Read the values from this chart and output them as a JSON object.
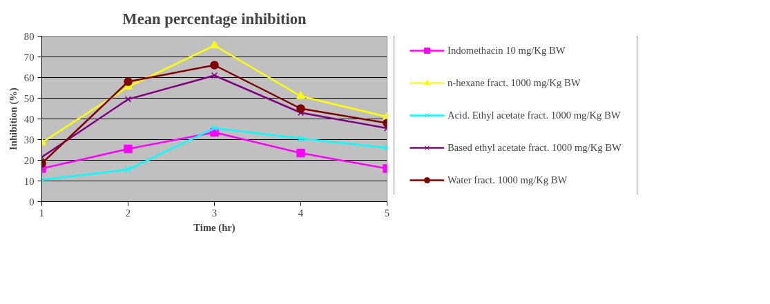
{
  "chart_data": {
    "type": "line",
    "title": "Mean percentage inhibition",
    "xlabel": "Time (hr)",
    "ylabel": "Inhibition (%)",
    "x": [
      1,
      2,
      3,
      4,
      5
    ],
    "xlim": [
      1,
      5
    ],
    "xticks": [
      1,
      2,
      3,
      4,
      5
    ],
    "ylim": [
      0,
      80
    ],
    "yticks": [
      0,
      10,
      20,
      30,
      40,
      50,
      60,
      70,
      80
    ],
    "grid": "y",
    "legend": "right",
    "series": [
      {
        "name": "Indomethacin 10 mg/Kg BW",
        "color": "#ff00ff",
        "marker": "square",
        "values": [
          16,
          25.5,
          33.5,
          23.5,
          16
        ]
      },
      {
        "name": "n-hexane fract. 1000 mg/Kg BW",
        "color": "#ffff00",
        "marker": "triangle",
        "values": [
          28.5,
          55.5,
          75.5,
          51,
          41
        ]
      },
      {
        "name": "Acid. Ethyl acetate fract. 1000 mg/Kg BW",
        "color": "#00ffff",
        "marker": "cross",
        "values": [
          10.5,
          15.5,
          35.5,
          30.5,
          26
        ]
      },
      {
        "name": "Based ethyl acetate fract. 1000 mg/Kg BW",
        "color": "#800080",
        "marker": "cross",
        "values": [
          21.5,
          49.5,
          61,
          43,
          35.5
        ]
      },
      {
        "name": "Water fract. 1000 mg/Kg BW",
        "color": "#800000",
        "marker": "circle",
        "values": [
          18.5,
          58,
          66,
          45,
          38
        ]
      }
    ]
  }
}
